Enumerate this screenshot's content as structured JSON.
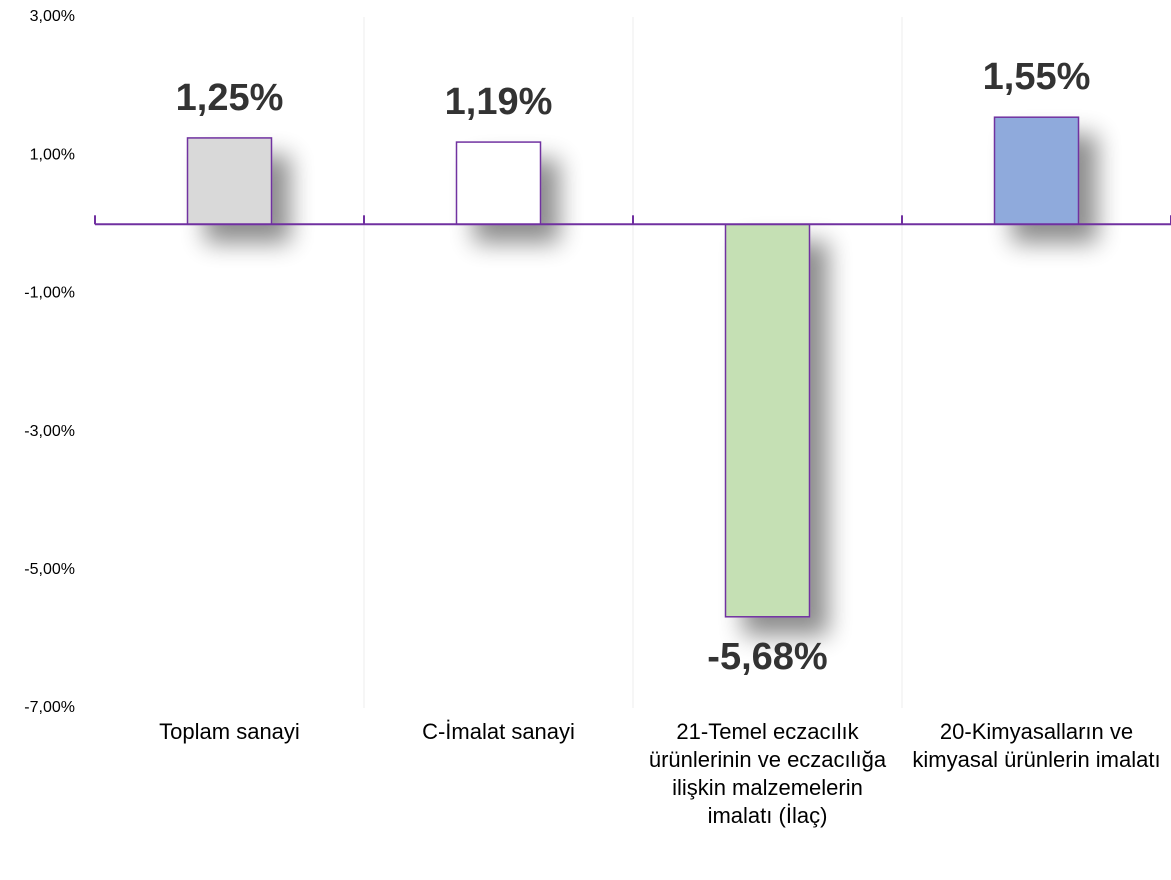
{
  "chart_data": {
    "type": "bar",
    "categories": [
      "Toplam sanayi",
      "C-İmalat sanayi",
      "21-Temel eczacılık ürünlerinin ve eczacılığa ilişkin malzemelerin imalatı (İlaç)",
      "20-Kimyasalların ve kimyasal ürünlerin imalatı"
    ],
    "values": [
      1.25,
      1.19,
      -5.68,
      1.55
    ],
    "value_labels": [
      "1,25%",
      "1,19%",
      "-5,68%",
      "1,55%"
    ],
    "colors": [
      "#d9d9d9",
      "#ffffff",
      "#c5e0b4",
      "#8faadc"
    ],
    "edge_color": "#7030a0",
    "ylim": [
      -7,
      3
    ],
    "yticks": [
      {
        "value": -7,
        "label": "-7,00%"
      },
      {
        "value": -5,
        "label": "-5,00%"
      },
      {
        "value": -3,
        "label": "-3,00%"
      },
      {
        "value": -1,
        "label": "-1,00%"
      },
      {
        "value": 1,
        "label": "1,00%"
      },
      {
        "value": 3,
        "label": "3,00%"
      }
    ]
  }
}
